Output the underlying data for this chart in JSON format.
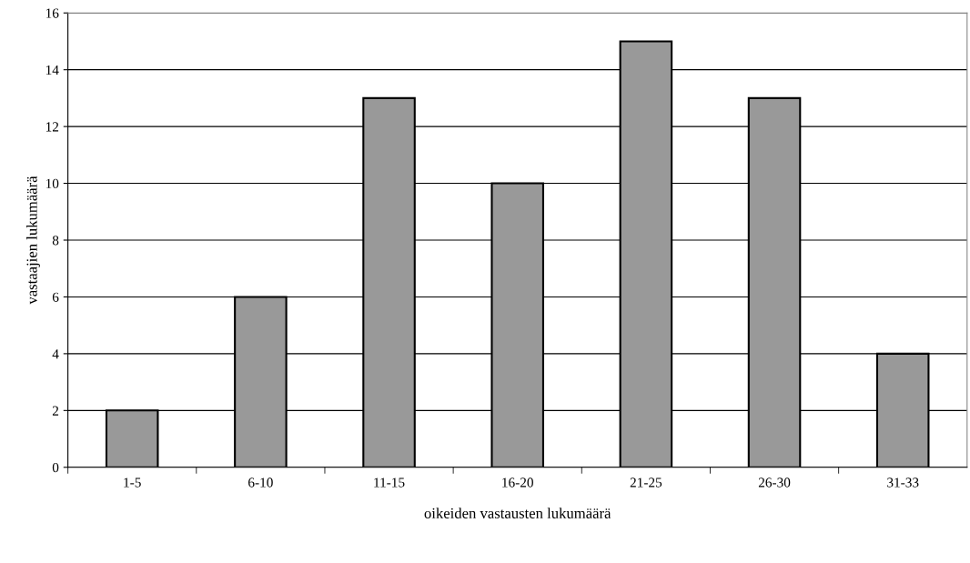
{
  "chart_data": {
    "type": "bar",
    "xlabel": "oikeiden vastausten lukumäärä",
    "ylabel": "vastaajien lukumäärä",
    "categories": [
      "1-5",
      "6-10",
      "11-15",
      "16-20",
      "21-25",
      "26-30",
      "31-33"
    ],
    "values": [
      2,
      6,
      13,
      10,
      15,
      13,
      4
    ],
    "color": "#999999",
    "ylim": [
      0,
      16
    ],
    "yticks": [
      0,
      2,
      4,
      6,
      8,
      10,
      12,
      14,
      16
    ],
    "grid": "y"
  }
}
